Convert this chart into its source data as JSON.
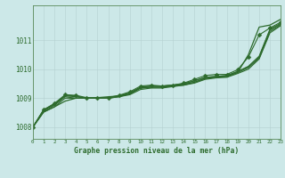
{
  "title": "Graphe pression niveau de la mer (hPa)",
  "bg_color": "#cce8e8",
  "grid_color": "#b8d4d4",
  "line_color": "#2d6b2d",
  "xlim": [
    0,
    23
  ],
  "ylim": [
    1007.6,
    1012.2
  ],
  "yticks": [
    1008,
    1009,
    1010,
    1011
  ],
  "xticks": [
    0,
    1,
    2,
    3,
    4,
    5,
    6,
    7,
    8,
    9,
    10,
    11,
    12,
    13,
    14,
    15,
    16,
    17,
    18,
    19,
    20,
    21,
    22,
    23
  ],
  "series_plain": [
    [
      1008.0,
      1008.55,
      1008.75,
      1009.05,
      1009.0,
      1009.0,
      1009.0,
      1009.0,
      1009.05,
      1009.15,
      1009.35,
      1009.38,
      1009.38,
      1009.42,
      1009.48,
      1009.55,
      1009.68,
      1009.72,
      1009.75,
      1009.88,
      1010.05,
      1010.38,
      1011.3,
      1011.52
    ],
    [
      1008.0,
      1008.58,
      1008.78,
      1009.08,
      1009.05,
      1009.0,
      1009.0,
      1009.0,
      1009.08,
      1009.18,
      1009.38,
      1009.42,
      1009.42,
      1009.45,
      1009.5,
      1009.6,
      1009.72,
      1009.75,
      1009.78,
      1009.92,
      1010.08,
      1010.42,
      1011.35,
      1011.55
    ],
    [
      1008.0,
      1008.6,
      1008.8,
      1009.1,
      1009.08,
      1009.0,
      1009.0,
      1009.0,
      1009.08,
      1009.18,
      1009.38,
      1009.42,
      1009.42,
      1009.45,
      1009.5,
      1009.6,
      1009.72,
      1009.75,
      1009.78,
      1009.92,
      1010.1,
      1010.45,
      1011.38,
      1011.58
    ],
    [
      1008.0,
      1008.52,
      1008.7,
      1009.0,
      1009.0,
      1009.0,
      1009.0,
      1009.0,
      1009.05,
      1009.12,
      1009.3,
      1009.35,
      1009.35,
      1009.4,
      1009.45,
      1009.52,
      1009.65,
      1009.7,
      1009.72,
      1009.85,
      1010.0,
      1010.35,
      1011.25,
      1011.5
    ]
  ],
  "series_with_markers": [
    [
      1008.0,
      1008.6,
      1008.82,
      1009.12,
      1009.1,
      1009.02,
      1009.02,
      1009.02,
      1009.1,
      1009.22,
      1009.42,
      1009.45,
      1009.42,
      1009.45,
      1009.52,
      1009.65,
      1009.78,
      1009.82,
      1009.82,
      1009.98,
      1010.42,
      1011.18,
      1011.42,
      1011.62
    ]
  ],
  "top_line": [
    1008.0,
    1008.52,
    1008.7,
    1008.9,
    1009.0,
    1009.0,
    1009.02,
    1009.05,
    1009.08,
    1009.15,
    1009.35,
    1009.38,
    1009.38,
    1009.42,
    1009.45,
    1009.55,
    1009.68,
    1009.72,
    1009.75,
    1009.88,
    1010.5,
    1011.45,
    1011.52,
    1011.72
  ],
  "marker_style": "D",
  "marker_size": 2.5
}
